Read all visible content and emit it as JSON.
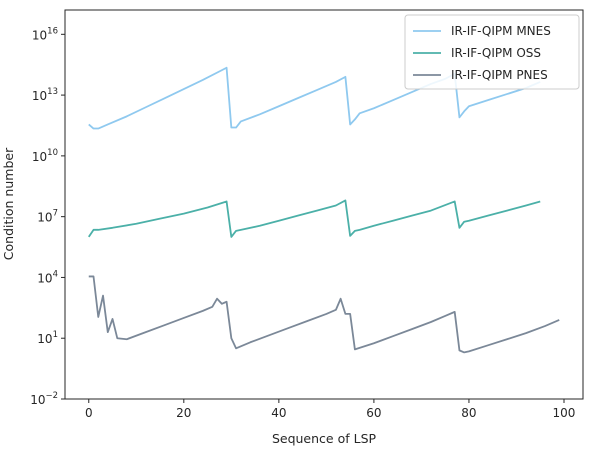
{
  "chart_data": {
    "type": "line",
    "title": "",
    "xlabel": "Sequence of LSP",
    "ylabel": "Condition number",
    "xlim": [
      -5,
      104
    ],
    "ylim_log10": [
      -2,
      17.2
    ],
    "yscale": "log",
    "grid": false,
    "legend_position": "top-right",
    "x_ticks": [
      0,
      20,
      40,
      60,
      80,
      100
    ],
    "y_ticks": [
      {
        "exp": -2,
        "base": "10",
        "sup": "−2"
      },
      {
        "exp": 1,
        "base": "10",
        "sup": "1"
      },
      {
        "exp": 4,
        "base": "10",
        "sup": "4"
      },
      {
        "exp": 7,
        "base": "10",
        "sup": "7"
      },
      {
        "exp": 10,
        "base": "10",
        "sup": "10"
      },
      {
        "exp": 13,
        "base": "10",
        "sup": "13"
      },
      {
        "exp": 16,
        "base": "10",
        "sup": "16"
      }
    ],
    "series": [
      {
        "name": "IR-IF-QIPM MNES",
        "color": "#8fc9ef",
        "log10_points": [
          [
            0,
            11.55
          ],
          [
            1,
            11.35
          ],
          [
            2,
            11.35
          ],
          [
            4,
            11.55
          ],
          [
            8,
            11.95
          ],
          [
            12,
            12.4
          ],
          [
            16,
            12.85
          ],
          [
            20,
            13.3
          ],
          [
            24,
            13.75
          ],
          [
            29,
            14.35
          ],
          [
            30,
            11.4
          ],
          [
            31,
            11.4
          ],
          [
            32,
            11.7
          ],
          [
            36,
            12.05
          ],
          [
            40,
            12.45
          ],
          [
            44,
            12.85
          ],
          [
            48,
            13.25
          ],
          [
            52,
            13.65
          ],
          [
            54,
            13.9
          ],
          [
            55,
            11.55
          ],
          [
            56,
            11.8
          ],
          [
            57,
            12.1
          ],
          [
            60,
            12.35
          ],
          [
            64,
            12.75
          ],
          [
            68,
            13.15
          ],
          [
            72,
            13.55
          ],
          [
            75,
            13.8
          ],
          [
            77,
            14.05
          ],
          [
            78,
            11.9
          ],
          [
            79,
            12.2
          ],
          [
            80,
            12.45
          ],
          [
            84,
            12.75
          ],
          [
            88,
            13.05
          ],
          [
            92,
            13.35
          ],
          [
            95,
            13.65
          ]
        ]
      },
      {
        "name": "IR-IF-QIPM OSS",
        "color": "#4bb0a8",
        "log10_points": [
          [
            0,
            6.0
          ],
          [
            1,
            6.35
          ],
          [
            2,
            6.35
          ],
          [
            5,
            6.45
          ],
          [
            10,
            6.65
          ],
          [
            15,
            6.9
          ],
          [
            20,
            7.15
          ],
          [
            25,
            7.45
          ],
          [
            29,
            7.75
          ],
          [
            30,
            6.0
          ],
          [
            31,
            6.3
          ],
          [
            32,
            6.35
          ],
          [
            36,
            6.55
          ],
          [
            40,
            6.8
          ],
          [
            44,
            7.05
          ],
          [
            48,
            7.3
          ],
          [
            52,
            7.55
          ],
          [
            54,
            7.8
          ],
          [
            55,
            6.05
          ],
          [
            56,
            6.3
          ],
          [
            57,
            6.35
          ],
          [
            60,
            6.55
          ],
          [
            64,
            6.8
          ],
          [
            68,
            7.05
          ],
          [
            72,
            7.3
          ],
          [
            77,
            7.75
          ],
          [
            78,
            6.45
          ],
          [
            79,
            6.75
          ],
          [
            80,
            6.8
          ],
          [
            84,
            7.05
          ],
          [
            88,
            7.3
          ],
          [
            92,
            7.55
          ],
          [
            95,
            7.75
          ]
        ]
      },
      {
        "name": "IR-IF-QIPM PNES",
        "color": "#7b8898",
        "log10_points": [
          [
            0,
            4.05
          ],
          [
            1,
            4.05
          ],
          [
            2,
            2.05
          ],
          [
            3,
            3.1
          ],
          [
            4,
            1.3
          ],
          [
            5,
            1.95
          ],
          [
            6,
            1.0
          ],
          [
            8,
            0.95
          ],
          [
            12,
            1.3
          ],
          [
            16,
            1.65
          ],
          [
            20,
            2.0
          ],
          [
            24,
            2.35
          ],
          [
            26,
            2.55
          ],
          [
            27,
            2.95
          ],
          [
            28,
            2.7
          ],
          [
            29,
            2.8
          ],
          [
            30,
            1.0
          ],
          [
            31,
            0.5
          ],
          [
            34,
            0.8
          ],
          [
            38,
            1.15
          ],
          [
            42,
            1.5
          ],
          [
            46,
            1.85
          ],
          [
            50,
            2.2
          ],
          [
            52,
            2.4
          ],
          [
            53,
            2.95
          ],
          [
            54,
            2.2
          ],
          [
            55,
            2.2
          ],
          [
            56,
            0.45
          ],
          [
            60,
            0.75
          ],
          [
            64,
            1.1
          ],
          [
            68,
            1.45
          ],
          [
            72,
            1.8
          ],
          [
            75,
            2.1
          ],
          [
            77,
            2.3
          ],
          [
            78,
            0.4
          ],
          [
            79,
            0.3
          ],
          [
            80,
            0.35
          ],
          [
            84,
            0.65
          ],
          [
            88,
            0.95
          ],
          [
            92,
            1.25
          ],
          [
            96,
            1.6
          ],
          [
            99,
            1.9
          ]
        ]
      }
    ]
  }
}
